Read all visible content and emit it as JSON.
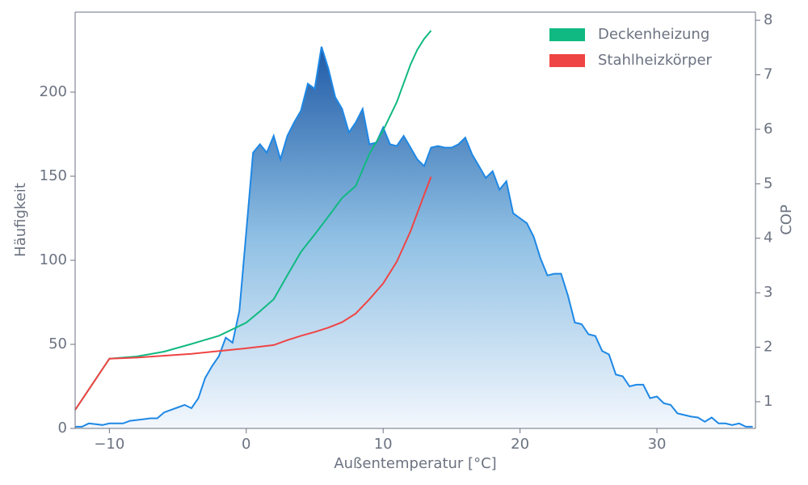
{
  "chart_data": {
    "type": "line",
    "xlabel": "Außentemperatur [°C]",
    "ylabel": "Häufigkeit",
    "y2label": "COP",
    "xlim": [
      -12.5,
      37.2
    ],
    "xticks": [
      {
        "value": -10,
        "label": "−10"
      },
      0,
      10,
      20,
      30
    ],
    "ylim": [
      0,
      247.6
    ],
    "yticks": [
      0,
      50,
      100,
      150,
      200
    ],
    "y2lim": [
      0.51,
      8.15
    ],
    "y2ticks": [
      1,
      2,
      3,
      4,
      5,
      6,
      7,
      8
    ],
    "legend": "upper right",
    "series": [
      {
        "color": "#1e88e5",
        "fill": true,
        "x": [
          -12.5,
          -12,
          -11.5,
          -11,
          -10.5,
          -10,
          -9.5,
          -9,
          -8.5,
          -8,
          -7.5,
          -7,
          -6.5,
          -6,
          -5.5,
          -5,
          -4.5,
          -4,
          -3.5,
          -3,
          -2.5,
          -2,
          -1.5,
          -1,
          -0.5,
          0,
          0.5,
          1,
          1.5,
          2,
          2.5,
          3,
          3.5,
          4,
          4.5,
          5,
          5.5,
          6,
          6.5,
          7,
          7.5,
          8,
          8.5,
          9,
          9.5,
          10,
          10.5,
          11,
          11.5,
          12,
          12.5,
          13,
          13.5,
          14,
          14.5,
          15,
          15.5,
          16,
          16.5,
          17,
          17.5,
          18,
          18.5,
          19,
          19.5,
          20,
          20.5,
          21,
          21.5,
          22,
          22.5,
          23,
          23.5,
          24,
          24.5,
          25,
          25.5,
          26,
          26.5,
          27,
          27.5,
          28,
          28.5,
          29,
          29.5,
          30,
          30.5,
          31,
          31.5,
          32,
          32.5,
          33,
          33.5,
          34,
          34.5,
          35,
          35.5,
          36,
          36.5,
          37
        ],
        "values": [
          1,
          1,
          3,
          2.5,
          2,
          3,
          3,
          3,
          4.5,
          5,
          5.5,
          6,
          6,
          9.5,
          11,
          12.5,
          14,
          12,
          18,
          30,
          37,
          43,
          54,
          51,
          70,
          117,
          164,
          169,
          164,
          174,
          160,
          174,
          182,
          189,
          205,
          202,
          227,
          214,
          197,
          190,
          176,
          182,
          190,
          169,
          170,
          179,
          169,
          168,
          174,
          167,
          160,
          156,
          167,
          168,
          167,
          167,
          169,
          173,
          163,
          156,
          149,
          153,
          142,
          147,
          128,
          125,
          122,
          114,
          101,
          91,
          92,
          92,
          79,
          63,
          62,
          56,
          55,
          46,
          44,
          32,
          31,
          25,
          26,
          26,
          18,
          19,
          15,
          14,
          9,
          8,
          7,
          6.5,
          4,
          6.5,
          3,
          3,
          2,
          3,
          1,
          1
        ]
      },
      {
        "name": "Deckenheizung",
        "color": "#10b981",
        "axis": "y2",
        "x": [
          -12.5,
          -10,
          -8,
          -6,
          -4,
          -2,
          0,
          1,
          2,
          3,
          4,
          5,
          6,
          7,
          8,
          9,
          10,
          11,
          12,
          12.5,
          13,
          13.5
        ],
        "values": [
          0.85,
          1.79,
          1.83,
          1.92,
          2.06,
          2.21,
          2.45,
          2.66,
          2.88,
          3.32,
          3.75,
          4.07,
          4.4,
          4.74,
          4.96,
          5.55,
          5.98,
          6.5,
          7.19,
          7.46,
          7.66,
          7.81
        ]
      },
      {
        "name": "Stahlheizkörper",
        "color": "#ef4444",
        "axis": "y2",
        "x": [
          -12.5,
          -10,
          -8,
          -4,
          0,
          2,
          3,
          4,
          5,
          6,
          7,
          8,
          9,
          10,
          11,
          12,
          13,
          13.5
        ],
        "values": [
          0.85,
          1.79,
          1.81,
          1.88,
          1.98,
          2.04,
          2.13,
          2.21,
          2.28,
          2.36,
          2.46,
          2.62,
          2.88,
          3.17,
          3.57,
          4.13,
          4.8,
          5.13
        ]
      }
    ]
  }
}
